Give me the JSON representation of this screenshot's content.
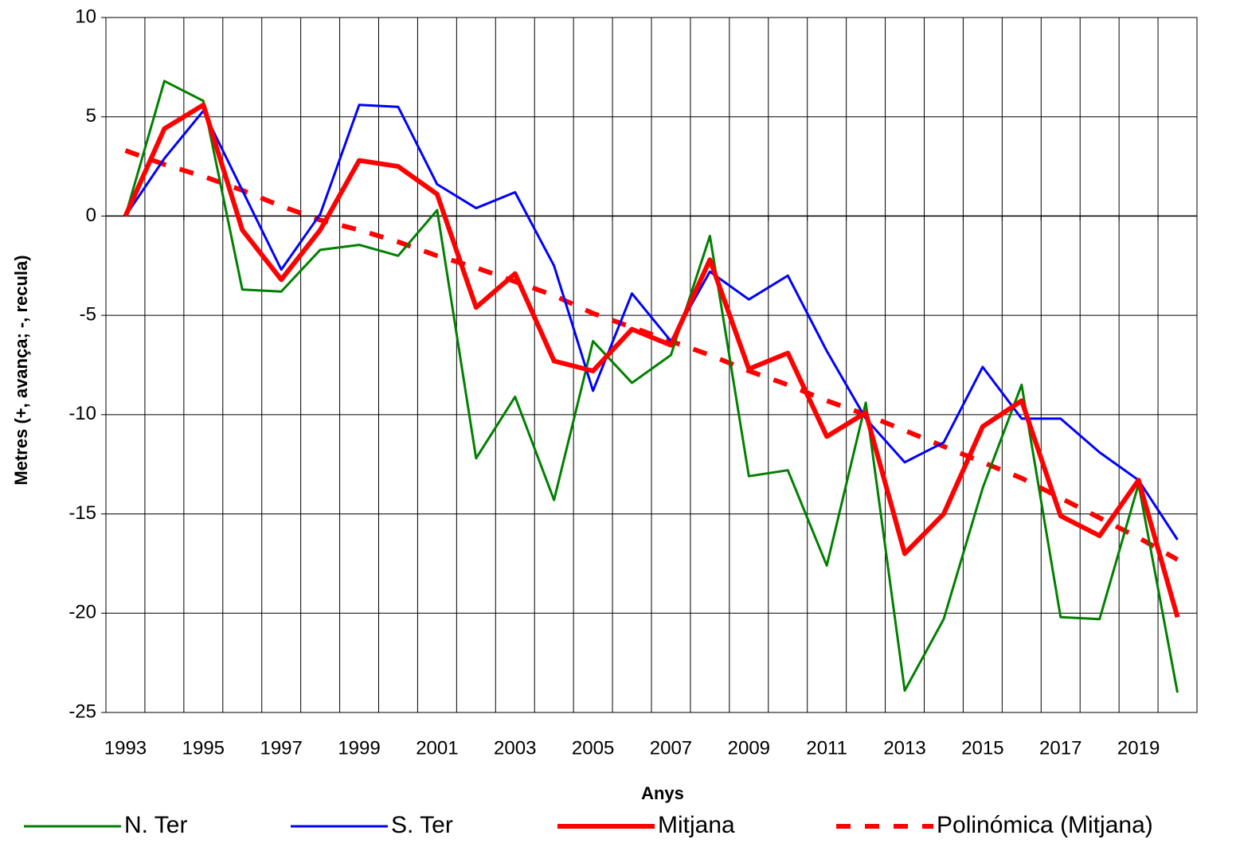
{
  "chart_data": {
    "type": "line",
    "x_label": "Anys",
    "y_label": "Metres (+, avança; -, recula)",
    "categories": [
      "1993",
      null,
      "1995",
      null,
      "1997",
      null,
      "1999",
      null,
      "2001",
      null,
      "2003",
      null,
      "2005",
      null,
      "2007",
      null,
      "2009",
      null,
      "2011",
      null,
      "2013",
      null,
      "2015",
      null,
      "2017",
      null,
      "2019",
      null
    ],
    "ylim": [
      -25,
      10
    ],
    "yticks": [
      10,
      5,
      0,
      -5,
      -10,
      -15,
      -20,
      -25
    ],
    "grid": true,
    "series": [
      {
        "name": "N. Ter",
        "color": "#008000",
        "values": [
          0,
          6.8,
          5.8,
          -3.7,
          -3.8,
          -1.7,
          -1.45,
          -2.0,
          0.3,
          -12.2,
          -9.1,
          -14.3,
          -6.3,
          -8.4,
          -7.0,
          -1.0,
          -13.1,
          -12.8,
          -17.6,
          -9.4,
          -23.9,
          -20.3,
          -13.7,
          -8.5,
          -20.2,
          -20.3,
          -13.5,
          -24.0
        ]
      },
      {
        "name": "S. Ter",
        "color": "#0000ff",
        "values": [
          0,
          2.9,
          5.3,
          1.3,
          -2.7,
          0.1,
          5.6,
          5.5,
          1.6,
          0.4,
          1.2,
          -2.5,
          -8.8,
          -3.9,
          -6.3,
          -2.8,
          -4.2,
          -3.0,
          -6.8,
          -10.2,
          -12.4,
          -11.4,
          -7.6,
          -10.2,
          -10.2,
          -11.9,
          -13.3,
          -16.3
        ]
      },
      {
        "name": "Mitjana",
        "color": "#ff0000",
        "values": [
          0,
          4.4,
          5.6,
          -0.7,
          -3.2,
          -0.7,
          2.8,
          2.5,
          1.1,
          -4.6,
          -2.9,
          -7.3,
          -7.8,
          -5.7,
          -6.5,
          -2.2,
          -7.7,
          -6.9,
          -11.1,
          -9.9,
          -17.0,
          -15.0,
          -10.6,
          -9.3,
          -15.1,
          -16.1,
          -13.3,
          -20.2
        ]
      },
      {
        "name": "Polinómica (Mitjana)",
        "color": "#ff0000",
        "dashed": true,
        "values": [
          3.3,
          2.6,
          2.0,
          1.3,
          0.5,
          -0.2,
          -0.7,
          -1.3,
          -2.0,
          -2.6,
          -3.3,
          -4.0,
          -4.9,
          -5.6,
          -6.3,
          -7.0,
          -7.8,
          -8.5,
          -9.3,
          -10.0,
          -10.8,
          -11.6,
          -12.4,
          -13.2,
          -14.2,
          -15.2,
          -16.2,
          -17.3
        ]
      }
    ]
  }
}
